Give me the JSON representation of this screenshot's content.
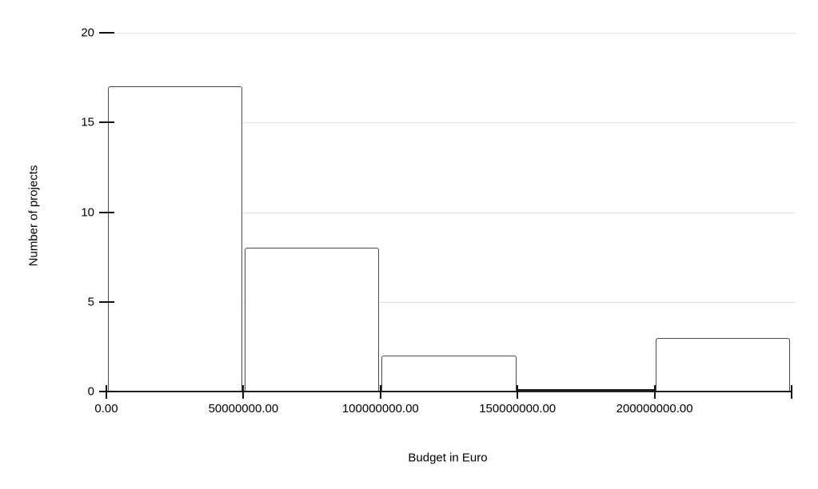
{
  "chart_data": {
    "type": "bar",
    "subtype": "histogram",
    "title": "",
    "xlabel": "Budget in Euro",
    "ylabel": "Number of projects",
    "bins": [
      {
        "range": [
          0,
          50000000
        ],
        "count": 17
      },
      {
        "range": [
          50000000,
          100000000
        ],
        "count": 8
      },
      {
        "range": [
          100000000,
          150000000
        ],
        "count": 2
      },
      {
        "range": [
          150000000,
          200000000
        ],
        "count": 0
      },
      {
        "range": [
          200000000,
          250000000
        ],
        "count": 3
      }
    ],
    "x_tick_labels": [
      "0.00",
      "50000000.00",
      "100000000.00",
      "150000000.00",
      "200000000.00"
    ],
    "y_ticks": [
      0,
      5,
      10,
      15,
      20
    ],
    "xlim": [
      0,
      250000000
    ],
    "ylim": [
      0,
      20
    ],
    "grid": "horizontal-only",
    "legend": "none",
    "colors": {
      "background": "#ffffff",
      "bar_fill": "#ffffff",
      "bar_stroke": "#4a4a4a",
      "gridline": "#e2e2e2",
      "axis": "#212121",
      "tick": "#111111",
      "text": "#000000"
    }
  }
}
